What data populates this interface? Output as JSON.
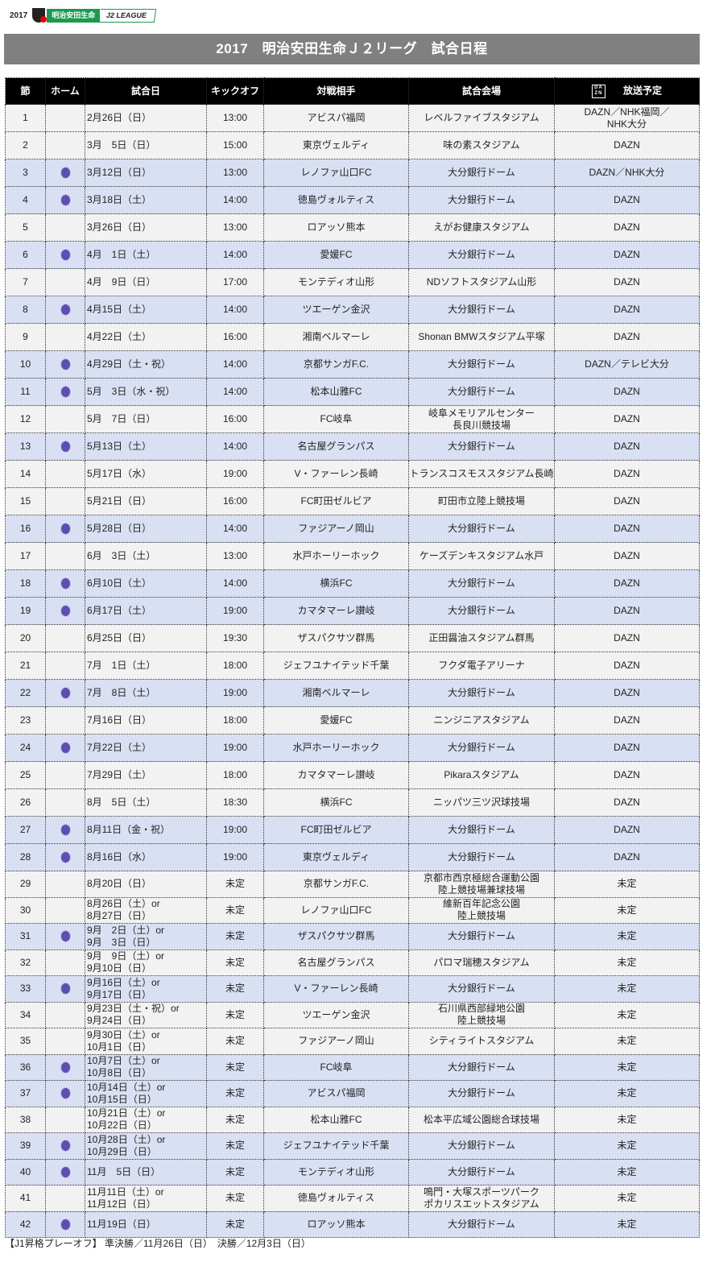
{
  "logo": {
    "year": "2017",
    "sponsor": "明治安田生命",
    "league": "J2 LEAGUE"
  },
  "title": "2017　明治安田生命Ｊ２リーグ　試合日程",
  "colors": {
    "header_bg": "#000000",
    "title_bg": "#808080",
    "home_row": "#d9e0f3",
    "away_row": "#f2f2f2",
    "home_emblem": "#5d4fb0"
  },
  "headers": {
    "round": "節",
    "home": "ホーム",
    "date": "試合日",
    "kickoff": "キックオフ",
    "opponent": "対戦相手",
    "venue": "試合会場",
    "broadcast": "放送予定",
    "dazn_logo": [
      "DA",
      "ZN"
    ]
  },
  "rows": [
    {
      "no": "1",
      "home": false,
      "date": [
        "2月26日（日）"
      ],
      "kickoff": "13:00",
      "opponent": "アビスパ福岡",
      "venue": [
        "レベルファイブスタジアム"
      ],
      "broadcast": [
        "DAZN／NHK福岡／",
        "NHK大分"
      ]
    },
    {
      "no": "2",
      "home": false,
      "date": [
        "3月　5日（日）"
      ],
      "kickoff": "15:00",
      "opponent": "東京ヴェルディ",
      "venue": [
        "味の素スタジアム"
      ],
      "broadcast": [
        "DAZN"
      ]
    },
    {
      "no": "3",
      "home": true,
      "date": [
        "3月12日（日）"
      ],
      "kickoff": "13:00",
      "opponent": "レノファ山口FC",
      "venue": [
        "大分銀行ドーム"
      ],
      "broadcast": [
        "DAZN／NHK大分"
      ]
    },
    {
      "no": "4",
      "home": true,
      "date": [
        "3月18日（土）"
      ],
      "kickoff": "14:00",
      "opponent": "徳島ヴォルティス",
      "venue": [
        "大分銀行ドーム"
      ],
      "broadcast": [
        "DAZN"
      ]
    },
    {
      "no": "5",
      "home": false,
      "date": [
        "3月26日（日）"
      ],
      "kickoff": "13:00",
      "opponent": "ロアッソ熊本",
      "venue": [
        "えがお健康スタジアム"
      ],
      "broadcast": [
        "DAZN"
      ]
    },
    {
      "no": "6",
      "home": true,
      "date": [
        "4月　1日（土）"
      ],
      "kickoff": "14:00",
      "opponent": "愛媛FC",
      "venue": [
        "大分銀行ドーム"
      ],
      "broadcast": [
        "DAZN"
      ]
    },
    {
      "no": "7",
      "home": false,
      "date": [
        "4月　9日（日）"
      ],
      "kickoff": "17:00",
      "opponent": "モンテディオ山形",
      "venue": [
        "NDソフトスタジアム山形"
      ],
      "broadcast": [
        "DAZN"
      ]
    },
    {
      "no": "8",
      "home": true,
      "date": [
        "4月15日（土）"
      ],
      "kickoff": "14:00",
      "opponent": "ツエーゲン金沢",
      "venue": [
        "大分銀行ドーム"
      ],
      "broadcast": [
        "DAZN"
      ]
    },
    {
      "no": "9",
      "home": false,
      "date": [
        "4月22日（土）"
      ],
      "kickoff": "16:00",
      "opponent": "湘南ベルマーレ",
      "venue": [
        "Shonan BMWスタジアム平塚"
      ],
      "broadcast": [
        "DAZN"
      ]
    },
    {
      "no": "10",
      "home": true,
      "date": [
        "4月29日（土・祝）"
      ],
      "kickoff": "14:00",
      "opponent": "京都サンガF.C.",
      "venue": [
        "大分銀行ドーム"
      ],
      "broadcast": [
        "DAZN／テレビ大分"
      ]
    },
    {
      "no": "11",
      "home": true,
      "date": [
        "5月　3日（水・祝）"
      ],
      "kickoff": "14:00",
      "opponent": "松本山雅FC",
      "venue": [
        "大分銀行ドーム"
      ],
      "broadcast": [
        "DAZN"
      ]
    },
    {
      "no": "12",
      "home": false,
      "date": [
        "5月　7日（日）"
      ],
      "kickoff": "16:00",
      "opponent": "FC岐阜",
      "venue": [
        "岐阜メモリアルセンター",
        "長良川競技場"
      ],
      "broadcast": [
        "DAZN"
      ]
    },
    {
      "no": "13",
      "home": true,
      "date": [
        "5月13日（土）"
      ],
      "kickoff": "14:00",
      "opponent": "名古屋グランパス",
      "venue": [
        "大分銀行ドーム"
      ],
      "broadcast": [
        "DAZN"
      ]
    },
    {
      "no": "14",
      "home": false,
      "date": [
        "5月17日（水）"
      ],
      "kickoff": "19:00",
      "opponent": "V・ファーレン長崎",
      "venue": [
        "トランスコスモススタジアム長崎"
      ],
      "broadcast": [
        "DAZN"
      ]
    },
    {
      "no": "15",
      "home": false,
      "date": [
        "5月21日（日）"
      ],
      "kickoff": "16:00",
      "opponent": "FC町田ゼルビア",
      "venue": [
        "町田市立陸上競技場"
      ],
      "broadcast": [
        "DAZN"
      ]
    },
    {
      "no": "16",
      "home": true,
      "date": [
        "5月28日（日）"
      ],
      "kickoff": "14:00",
      "opponent": "ファジアーノ岡山",
      "venue": [
        "大分銀行ドーム"
      ],
      "broadcast": [
        "DAZN"
      ]
    },
    {
      "no": "17",
      "home": false,
      "date": [
        "6月　3日（土）"
      ],
      "kickoff": "13:00",
      "opponent": "水戸ホーリーホック",
      "venue": [
        "ケーズデンキスタジアム水戸"
      ],
      "broadcast": [
        "DAZN"
      ]
    },
    {
      "no": "18",
      "home": true,
      "date": [
        "6月10日（土）"
      ],
      "kickoff": "14:00",
      "opponent": "横浜FC",
      "venue": [
        "大分銀行ドーム"
      ],
      "broadcast": [
        "DAZN"
      ]
    },
    {
      "no": "19",
      "home": true,
      "date": [
        "6月17日（土）"
      ],
      "kickoff": "19:00",
      "opponent": "カマタマーレ讃岐",
      "venue": [
        "大分銀行ドーム"
      ],
      "broadcast": [
        "DAZN"
      ]
    },
    {
      "no": "20",
      "home": false,
      "date": [
        "6月25日（日）"
      ],
      "kickoff": "19:30",
      "opponent": "ザスパクサツ群馬",
      "venue": [
        "正田醤油スタジアム群馬"
      ],
      "broadcast": [
        "DAZN"
      ]
    },
    {
      "no": "21",
      "home": false,
      "date": [
        "7月　1日（土）"
      ],
      "kickoff": "18:00",
      "opponent": "ジェフユナイテッド千葉",
      "venue": [
        "フクダ電子アリーナ"
      ],
      "broadcast": [
        "DAZN"
      ]
    },
    {
      "no": "22",
      "home": true,
      "date": [
        "7月　8日（土）"
      ],
      "kickoff": "19:00",
      "opponent": "湘南ベルマーレ",
      "venue": [
        "大分銀行ドーム"
      ],
      "broadcast": [
        "DAZN"
      ]
    },
    {
      "no": "23",
      "home": false,
      "date": [
        "7月16日（日）"
      ],
      "kickoff": "18:00",
      "opponent": "愛媛FC",
      "venue": [
        "ニンジニアスタジアム"
      ],
      "broadcast": [
        "DAZN"
      ]
    },
    {
      "no": "24",
      "home": true,
      "date": [
        "7月22日（土）"
      ],
      "kickoff": "19:00",
      "opponent": "水戸ホーリーホック",
      "venue": [
        "大分銀行ドーム"
      ],
      "broadcast": [
        "DAZN"
      ]
    },
    {
      "no": "25",
      "home": false,
      "date": [
        "7月29日（土）"
      ],
      "kickoff": "18:00",
      "opponent": "カマタマーレ讃岐",
      "venue": [
        "Pikaraスタジアム"
      ],
      "broadcast": [
        "DAZN"
      ]
    },
    {
      "no": "26",
      "home": false,
      "date": [
        "8月　5日（土）"
      ],
      "kickoff": "18:30",
      "opponent": "横浜FC",
      "venue": [
        "ニッパツ三ツ沢球技場"
      ],
      "broadcast": [
        "DAZN"
      ]
    },
    {
      "no": "27",
      "home": true,
      "date": [
        "8月11日（金・祝）"
      ],
      "kickoff": "19:00",
      "opponent": "FC町田ゼルビア",
      "venue": [
        "大分銀行ドーム"
      ],
      "broadcast": [
        "DAZN"
      ]
    },
    {
      "no": "28",
      "home": true,
      "date": [
        "8月16日（水）"
      ],
      "kickoff": "19:00",
      "opponent": "東京ヴェルディ",
      "venue": [
        "大分銀行ドーム"
      ],
      "broadcast": [
        "DAZN"
      ]
    },
    {
      "no": "29",
      "home": false,
      "date": [
        "8月20日（日）"
      ],
      "kickoff": "未定",
      "opponent": "京都サンガF.C.",
      "venue": [
        "京都市西京極総合運動公園",
        "陸上競技場兼球技場"
      ],
      "broadcast": [
        "未定"
      ]
    },
    {
      "no": "30",
      "home": false,
      "date": [
        "8月26日（土）or",
        "8月27日（日）"
      ],
      "kickoff": "未定",
      "opponent": "レノファ山口FC",
      "venue": [
        "維新百年記念公園",
        "陸上競技場"
      ],
      "broadcast": [
        "未定"
      ]
    },
    {
      "no": "31",
      "home": true,
      "date": [
        "9月　2日（土）or",
        "9月　3日（日）"
      ],
      "kickoff": "未定",
      "opponent": "ザスパクサツ群馬",
      "venue": [
        "大分銀行ドーム"
      ],
      "broadcast": [
        "未定"
      ]
    },
    {
      "no": "32",
      "home": false,
      "date": [
        "9月　9日（土）or",
        "9月10日（日）"
      ],
      "kickoff": "未定",
      "opponent": "名古屋グランパス",
      "venue": [
        "パロマ瑞穂スタジアム"
      ],
      "broadcast": [
        "未定"
      ]
    },
    {
      "no": "33",
      "home": true,
      "date": [
        "9月16日（土）or",
        "9月17日（日）"
      ],
      "kickoff": "未定",
      "opponent": "V・ファーレン長崎",
      "venue": [
        "大分銀行ドーム"
      ],
      "broadcast": [
        "未定"
      ]
    },
    {
      "no": "34",
      "home": false,
      "date": [
        "9月23日（土・祝）or",
        "9月24日（日）"
      ],
      "kickoff": "未定",
      "opponent": "ツエーゲン金沢",
      "venue": [
        "石川県西部緑地公園",
        "陸上競技場"
      ],
      "broadcast": [
        "未定"
      ]
    },
    {
      "no": "35",
      "home": false,
      "date": [
        "9月30日（土）or",
        "10月1日（日）"
      ],
      "kickoff": "未定",
      "opponent": "ファジアーノ岡山",
      "venue": [
        "シティライトスタジアム"
      ],
      "broadcast": [
        "未定"
      ]
    },
    {
      "no": "36",
      "home": true,
      "date": [
        "10月7日（土）or",
        "10月8日（日）"
      ],
      "kickoff": "未定",
      "opponent": "FC岐阜",
      "venue": [
        "大分銀行ドーム"
      ],
      "broadcast": [
        "未定"
      ]
    },
    {
      "no": "37",
      "home": true,
      "date": [
        "10月14日（土）or",
        "10月15日（日）"
      ],
      "kickoff": "未定",
      "opponent": "アビスパ福岡",
      "venue": [
        "大分銀行ドーム"
      ],
      "broadcast": [
        "未定"
      ]
    },
    {
      "no": "38",
      "home": false,
      "date": [
        "10月21日（土）or",
        "10月22日（日）"
      ],
      "kickoff": "未定",
      "opponent": "松本山雅FC",
      "venue": [
        "松本平広域公園総合球技場"
      ],
      "broadcast": [
        "未定"
      ]
    },
    {
      "no": "39",
      "home": true,
      "date": [
        "10月28日（土）or",
        "10月29日（日）"
      ],
      "kickoff": "未定",
      "opponent": "ジェフユナイテッド千葉",
      "venue": [
        "大分銀行ドーム"
      ],
      "broadcast": [
        "未定"
      ]
    },
    {
      "no": "40",
      "home": true,
      "date": [
        "11月　5日（日）"
      ],
      "kickoff": "未定",
      "opponent": "モンテディオ山形",
      "venue": [
        "大分銀行ドーム"
      ],
      "broadcast": [
        "未定"
      ]
    },
    {
      "no": "41",
      "home": false,
      "date": [
        "11月11日（土）or",
        "11月12日（日）"
      ],
      "kickoff": "未定",
      "opponent": "徳島ヴォルティス",
      "venue": [
        "鳴門・大塚スポーツパーク",
        "ポカリスエットスタジアム"
      ],
      "broadcast": [
        "未定"
      ]
    },
    {
      "no": "42",
      "home": true,
      "date": [
        "11月19日（日）"
      ],
      "kickoff": "未定",
      "opponent": "ロアッソ熊本",
      "venue": [
        "大分銀行ドーム"
      ],
      "broadcast": [
        "未定"
      ]
    }
  ],
  "note": "【J1昇格プレーオフ】 準決勝／11月26日（日）　決勝／12月3日（日）"
}
